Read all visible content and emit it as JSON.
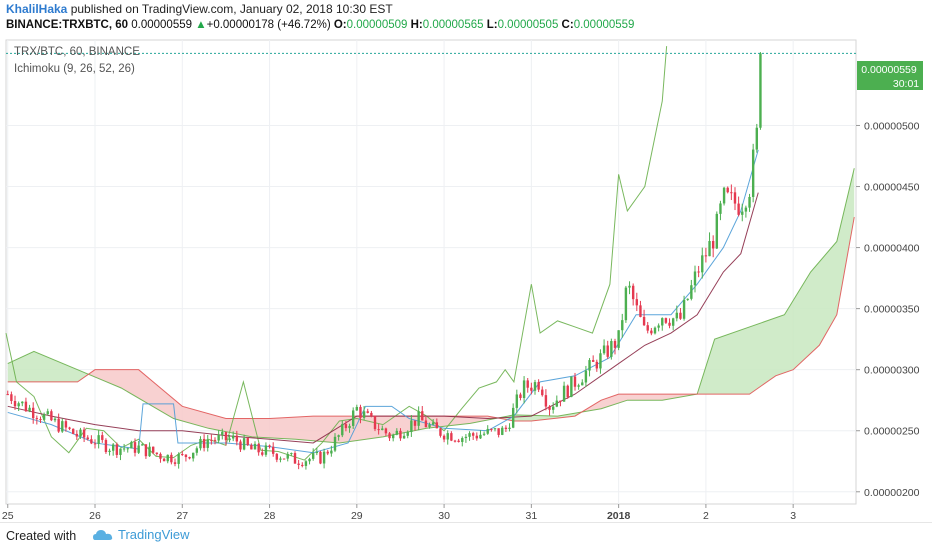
{
  "header": {
    "author": "KhalilHaka",
    "published_text": "published on TradingView.com, January 02, 2018 10:30 EST",
    "symbol": "BINANCE:TRXBTC, 60",
    "last": "0.00000559",
    "change_arrow": "▲",
    "change": "+0.00000178 (+46.72%)",
    "o_label": "O:",
    "o_value": "0.00000509",
    "h_label": "H:",
    "h_value": "0.00000565",
    "l_label": "L:",
    "l_value": "0.00000505",
    "c_label": "C:",
    "c_value": "0.00000559"
  },
  "legend": {
    "series_title": "TRX/BTC, 60, BINANCE",
    "indicator": "Ichimoku (9, 26, 52, 26)"
  },
  "price_badge": {
    "price": "0.00000559",
    "countdown": "30:01"
  },
  "footer": {
    "created_with": "Created with",
    "brand": "TradingView"
  },
  "colors": {
    "up": "#26a69a",
    "up_fill": "#4caf50",
    "down": "#e53950",
    "tenkan": "#4a9bd6",
    "kijun": "#8b2a46",
    "chikou": "#6ab04c",
    "span_a": "#6ab04c",
    "span_b": "#e05757",
    "cloud_green": "#c8e8c0",
    "cloud_red": "#f7c9c9",
    "badge": "#4caf50"
  },
  "chart_data": {
    "type": "candlestick",
    "title": "TRX/BTC, 60, BINANCE",
    "x_labels": [
      "25",
      "26",
      "27",
      "28",
      "29",
      "30",
      "31",
      "2018",
      "2",
      "3"
    ],
    "y_ticks": [
      "0.00000200",
      "0.00000250",
      "0.00000300",
      "0.00000350",
      "0.00000400",
      "0.00000450",
      "0.00000500"
    ],
    "ylim": [
      1.9e-06,
      5.7e-06
    ],
    "xlim_days": [
      24.98,
      34.72
    ],
    "grid": true,
    "last_price": 5.59e-06,
    "ohlc_key_points": [
      {
        "d": 25.0,
        "c": 2.8e-06
      },
      {
        "d": 25.2,
        "c": 2.7e-06
      },
      {
        "d": 25.5,
        "c": 2.58e-06
      },
      {
        "d": 25.8,
        "c": 2.46e-06
      },
      {
        "d": 26.0,
        "c": 2.42e-06
      },
      {
        "d": 26.2,
        "c": 2.36e-06
      },
      {
        "d": 26.5,
        "c": 2.36e-06
      },
      {
        "d": 26.8,
        "c": 2.29e-06
      },
      {
        "d": 27.0,
        "c": 2.28e-06
      },
      {
        "d": 27.3,
        "c": 2.43e-06
      },
      {
        "d": 27.6,
        "c": 2.43e-06
      },
      {
        "d": 27.8,
        "c": 2.34e-06
      },
      {
        "d": 28.0,
        "c": 2.33e-06
      },
      {
        "d": 28.3,
        "c": 2.26e-06
      },
      {
        "d": 28.6,
        "c": 2.28e-06
      },
      {
        "d": 28.8,
        "c": 2.46e-06
      },
      {
        "d": 29.0,
        "c": 2.68e-06
      },
      {
        "d": 29.2,
        "c": 2.55e-06
      },
      {
        "d": 29.4,
        "c": 2.45e-06
      },
      {
        "d": 29.7,
        "c": 2.6e-06
      },
      {
        "d": 29.9,
        "c": 2.5e-06
      },
      {
        "d": 30.2,
        "c": 2.45e-06
      },
      {
        "d": 30.5,
        "c": 2.48e-06
      },
      {
        "d": 30.7,
        "c": 2.5e-06
      },
      {
        "d": 30.9,
        "c": 2.85e-06
      },
      {
        "d": 31.1,
        "c": 2.9e-06
      },
      {
        "d": 31.2,
        "c": 2.7e-06
      },
      {
        "d": 31.5,
        "c": 2.9e-06
      },
      {
        "d": 31.8,
        "c": 3.1e-06
      },
      {
        "d": 32.0,
        "c": 3.25e-06
      },
      {
        "d": 32.1,
        "c": 3.7e-06
      },
      {
        "d": 32.3,
        "c": 3.3e-06
      },
      {
        "d": 32.5,
        "c": 3.45e-06
      },
      {
        "d": 32.7,
        "c": 3.4e-06
      },
      {
        "d": 32.9,
        "c": 3.8e-06
      },
      {
        "d": 33.1,
        "c": 4.1e-06
      },
      {
        "d": 33.2,
        "c": 4.4e-06
      },
      {
        "d": 33.4,
        "c": 4.35e-06
      },
      {
        "d": 33.5,
        "c": 4.5e-06
      },
      {
        "d": 33.6,
        "c": 5e-06
      },
      {
        "d": 33.65,
        "c": 5.59e-06
      }
    ],
    "ichimoku": {
      "tenkan": [
        [
          25.0,
          2.65e-06
        ],
        [
          25.5,
          2.55e-06
        ],
        [
          26.0,
          2.4e-06
        ],
        [
          26.5,
          2.35e-06
        ],
        [
          26.55,
          2.72e-06
        ],
        [
          26.9,
          2.72e-06
        ],
        [
          26.95,
          2.4e-06
        ],
        [
          27.5,
          2.4e-06
        ],
        [
          28.0,
          2.37e-06
        ],
        [
          28.5,
          2.32e-06
        ],
        [
          28.9,
          2.4e-06
        ],
        [
          29.1,
          2.7e-06
        ],
        [
          29.4,
          2.7e-06
        ],
        [
          29.6,
          2.6e-06
        ],
        [
          30.0,
          2.52e-06
        ],
        [
          30.5,
          2.5e-06
        ],
        [
          30.8,
          2.62e-06
        ],
        [
          31.1,
          2.9e-06
        ],
        [
          31.5,
          2.95e-06
        ],
        [
          31.9,
          3.1e-06
        ],
        [
          32.2,
          3.45e-06
        ],
        [
          32.6,
          3.45e-06
        ],
        [
          32.9,
          3.7e-06
        ],
        [
          33.2,
          4e-06
        ],
        [
          33.4,
          4.3e-06
        ],
        [
          33.6,
          4.8e-06
        ]
      ],
      "kijun": [
        [
          25.0,
          2.7e-06
        ],
        [
          25.5,
          2.62e-06
        ],
        [
          26.0,
          2.55e-06
        ],
        [
          26.5,
          2.5e-06
        ],
        [
          27.0,
          2.5e-06
        ],
        [
          27.5,
          2.46e-06
        ],
        [
          28.0,
          2.43e-06
        ],
        [
          28.5,
          2.4e-06
        ],
        [
          29.0,
          2.62e-06
        ],
        [
          29.5,
          2.62e-06
        ],
        [
          30.0,
          2.62e-06
        ],
        [
          30.5,
          2.6e-06
        ],
        [
          31.0,
          2.62e-06
        ],
        [
          31.5,
          2.8e-06
        ],
        [
          32.0,
          3.05e-06
        ],
        [
          32.3,
          3.2e-06
        ],
        [
          32.6,
          3.3e-06
        ],
        [
          32.9,
          3.45e-06
        ],
        [
          33.2,
          3.8e-06
        ],
        [
          33.4,
          3.95e-06
        ],
        [
          33.6,
          4.45e-06
        ]
      ],
      "span_a": [
        [
          25.0,
          3.05e-06
        ],
        [
          25.3,
          3.15e-06
        ],
        [
          25.8,
          3e-06
        ],
        [
          26.3,
          2.85e-06
        ],
        [
          26.9,
          2.6e-06
        ],
        [
          27.3,
          2.52e-06
        ],
        [
          27.8,
          2.45e-06
        ],
        [
          28.3,
          2.43e-06
        ],
        [
          28.8,
          2.4e-06
        ],
        [
          29.3,
          2.45e-06
        ],
        [
          29.8,
          2.52e-06
        ],
        [
          30.3,
          2.56e-06
        ],
        [
          30.8,
          2.63e-06
        ],
        [
          31.3,
          2.62e-06
        ],
        [
          31.8,
          2.68e-06
        ],
        [
          32.1,
          2.75e-06
        ],
        [
          32.5,
          2.75e-06
        ],
        [
          32.9,
          2.8e-06
        ],
        [
          33.1,
          3.25e-06
        ],
        [
          33.5,
          3.35e-06
        ],
        [
          33.9,
          3.45e-06
        ],
        [
          34.2,
          3.8e-06
        ],
        [
          34.5,
          4.05e-06
        ],
        [
          34.7,
          4.65e-06
        ]
      ],
      "span_b": [
        [
          25.0,
          2.9e-06
        ],
        [
          25.8,
          2.9e-06
        ],
        [
          26.0,
          3e-06
        ],
        [
          26.5,
          3e-06
        ],
        [
          27.0,
          2.7e-06
        ],
        [
          27.5,
          2.6e-06
        ],
        [
          28.0,
          2.6e-06
        ],
        [
          28.5,
          2.62e-06
        ],
        [
          29.0,
          2.62e-06
        ],
        [
          29.5,
          2.62e-06
        ],
        [
          30.0,
          2.62e-06
        ],
        [
          30.5,
          2.62e-06
        ],
        [
          30.8,
          2.58e-06
        ],
        [
          31.0,
          2.58e-06
        ],
        [
          31.5,
          2.62e-06
        ],
        [
          31.8,
          2.75e-06
        ],
        [
          32.0,
          2.8e-06
        ],
        [
          32.5,
          2.8e-06
        ],
        [
          32.8,
          2.8e-06
        ],
        [
          33.5,
          2.8e-06
        ],
        [
          33.8,
          2.95e-06
        ],
        [
          34.0,
          3e-06
        ],
        [
          34.3,
          3.2e-06
        ],
        [
          34.5,
          3.45e-06
        ],
        [
          34.7,
          4.25e-06
        ]
      ],
      "chikou": [
        [
          24.98,
          3.3e-06
        ],
        [
          25.1,
          2.9e-06
        ],
        [
          25.3,
          2.78e-06
        ],
        [
          25.5,
          2.45e-06
        ],
        [
          25.7,
          2.32e-06
        ],
        [
          25.9,
          2.52e-06
        ],
        [
          26.1,
          2.5e-06
        ],
        [
          26.3,
          2.36e-06
        ],
        [
          26.5,
          2.43e-06
        ],
        [
          26.7,
          2.29e-06
        ],
        [
          26.9,
          2.28e-06
        ],
        [
          27.1,
          2.38e-06
        ],
        [
          27.3,
          2.43e-06
        ],
        [
          27.5,
          2.38e-06
        ],
        [
          27.7,
          2.9e-06
        ],
        [
          27.9,
          2.34e-06
        ],
        [
          28.1,
          2.33e-06
        ],
        [
          28.4,
          2.26e-06
        ],
        [
          28.6,
          2.4e-06
        ],
        [
          28.8,
          2.58e-06
        ],
        [
          29.0,
          2.6e-06
        ],
        [
          29.3,
          2.55e-06
        ],
        [
          29.6,
          2.7e-06
        ],
        [
          29.8,
          2.62e-06
        ],
        [
          30.0,
          2.5e-06
        ],
        [
          30.2,
          2.68e-06
        ],
        [
          30.4,
          2.85e-06
        ],
        [
          30.6,
          2.9e-06
        ],
        [
          30.7,
          3e-06
        ],
        [
          30.8,
          2.9e-06
        ],
        [
          30.9,
          3.3e-06
        ],
        [
          31.0,
          3.7e-06
        ],
        [
          31.1,
          3.3e-06
        ],
        [
          31.3,
          3.4e-06
        ],
        [
          31.5,
          3.35e-06
        ],
        [
          31.7,
          3.3e-06
        ],
        [
          31.9,
          3.7e-06
        ],
        [
          32.0,
          4.6e-06
        ],
        [
          32.1,
          4.3e-06
        ],
        [
          32.2,
          4.4e-06
        ],
        [
          32.3,
          4.5e-06
        ],
        [
          32.5,
          5.2e-06
        ],
        [
          32.55,
          5.65e-06
        ]
      ]
    }
  }
}
